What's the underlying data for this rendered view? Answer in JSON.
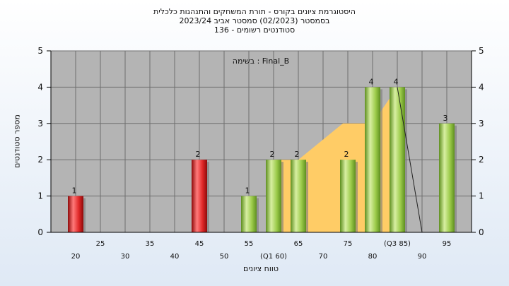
{
  "header": {
    "line1": "היסטוגרמת ציונים בקורס - תורת המשחקים והתנהגות כלכלית",
    "line2": "בסמסטר  (02/2023)  סמסטר אביב 2023/24",
    "line3": "סטודנטים רשומים - 136"
  },
  "chart_data": {
    "type": "bar",
    "ylabel": "מספר סטודנטים",
    "xlabel": "טווח ציונים",
    "annotation": "בשימה : Final_B",
    "xlim": [
      15,
      100
    ],
    "ylim": [
      0,
      5
    ],
    "yticks": [
      0,
      1,
      2,
      3,
      4,
      5
    ],
    "xticks": [
      {
        "value": 20,
        "label": "20"
      },
      {
        "value": 25,
        "label": "25"
      },
      {
        "value": 30,
        "label": "30"
      },
      {
        "value": 35,
        "label": "35"
      },
      {
        "value": 40,
        "label": "40"
      },
      {
        "value": 45,
        "label": "45"
      },
      {
        "value": 50,
        "label": "50"
      },
      {
        "value": 55,
        "label": "55"
      },
      {
        "value": 60,
        "label": "(Q1 60)"
      },
      {
        "value": 65,
        "label": "65"
      },
      {
        "value": 70,
        "label": "70"
      },
      {
        "value": 75,
        "label": "75"
      },
      {
        "value": 80,
        "label": "80"
      },
      {
        "value": 85,
        "label": "(Q3 85)"
      },
      {
        "value": 90,
        "label": "90"
      },
      {
        "value": 95,
        "label": "95"
      }
    ],
    "bars": [
      {
        "x": 20,
        "value": 1,
        "color": "red"
      },
      {
        "x": 45,
        "value": 2,
        "color": "red"
      },
      {
        "x": 55,
        "value": 1,
        "color": "green"
      },
      {
        "x": 60,
        "value": 2,
        "color": "green"
      },
      {
        "x": 65,
        "value": 2,
        "color": "green"
      },
      {
        "x": 75,
        "value": 2,
        "color": "green"
      },
      {
        "x": 80,
        "value": 4,
        "color": "green"
      },
      {
        "x": 85,
        "value": 4,
        "color": "green"
      },
      {
        "x": 95,
        "value": 3,
        "color": "green"
      }
    ],
    "area": [
      [
        65,
        2
      ],
      [
        74,
        3
      ],
      [
        80,
        3
      ],
      [
        85,
        4
      ],
      [
        85,
        0
      ],
      [
        60,
        0
      ],
      [
        60,
        2
      ],
      [
        65,
        2
      ]
    ],
    "line": [
      [
        85,
        4
      ],
      [
        90,
        0
      ]
    ],
    "grid": true,
    "colors": {
      "plot_bg": "#b4b4b4",
      "area": "#ffcc66",
      "red_light": "#ff7a7a",
      "red_mid": "#e02828",
      "red_dark": "#8e0a0a",
      "green_light": "#d8efa2",
      "green_mid": "#9ccb4a",
      "green_dark": "#5e8f1f"
    }
  }
}
